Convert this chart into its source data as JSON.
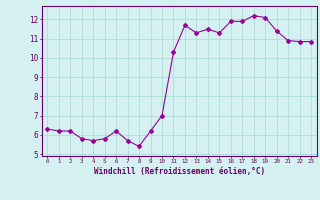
{
  "x": [
    0,
    1,
    2,
    3,
    4,
    5,
    6,
    7,
    8,
    9,
    10,
    11,
    12,
    13,
    14,
    15,
    16,
    17,
    18,
    19,
    20,
    21,
    22,
    23
  ],
  "y": [
    6.3,
    6.2,
    6.2,
    5.8,
    5.7,
    5.8,
    6.2,
    5.7,
    5.4,
    6.2,
    7.0,
    10.3,
    11.7,
    11.3,
    11.5,
    11.3,
    11.9,
    11.9,
    12.2,
    12.1,
    11.4,
    10.9,
    10.85,
    10.85
  ],
  "xlim": [
    -0.5,
    23.5
  ],
  "ylim": [
    4.9,
    12.7
  ],
  "yticks": [
    5,
    6,
    7,
    8,
    9,
    10,
    11,
    12
  ],
  "xticks": [
    0,
    1,
    2,
    3,
    4,
    5,
    6,
    7,
    8,
    9,
    10,
    11,
    12,
    13,
    14,
    15,
    16,
    17,
    18,
    19,
    20,
    21,
    22,
    23
  ],
  "xlabel": "Windchill (Refroidissement éolien,°C)",
  "line_color": "#990099",
  "marker": "D",
  "marker_size": 2,
  "bg_color": "#d4f0f0",
  "grid_color": "#aadddd",
  "axis_color": "#660066",
  "tick_color": "#660066",
  "label_color": "#660066",
  "font_family": "monospace"
}
